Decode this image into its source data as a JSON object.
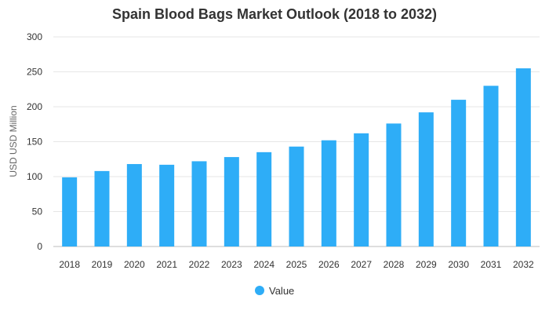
{
  "chart_data": {
    "type": "bar",
    "title": "Spain Blood Bags Market Outlook (2018 to 2032)",
    "xlabel": "",
    "ylabel": "USD USD Million",
    "categories": [
      "2018",
      "2019",
      "2020",
      "2021",
      "2022",
      "2023",
      "2024",
      "2025",
      "2026",
      "2027",
      "2028",
      "2029",
      "2030",
      "2031",
      "2032"
    ],
    "series": [
      {
        "name": "Value",
        "values": [
          99,
          108,
          118,
          117,
          122,
          128,
          135,
          143,
          152,
          162,
          176,
          192,
          210,
          230,
          255
        ],
        "color": "#2eadf7"
      }
    ],
    "ylim": [
      0,
      300
    ],
    "yticks": [
      0,
      50,
      100,
      150,
      200,
      250,
      300
    ],
    "grid": true,
    "legend_position": "bottom"
  }
}
